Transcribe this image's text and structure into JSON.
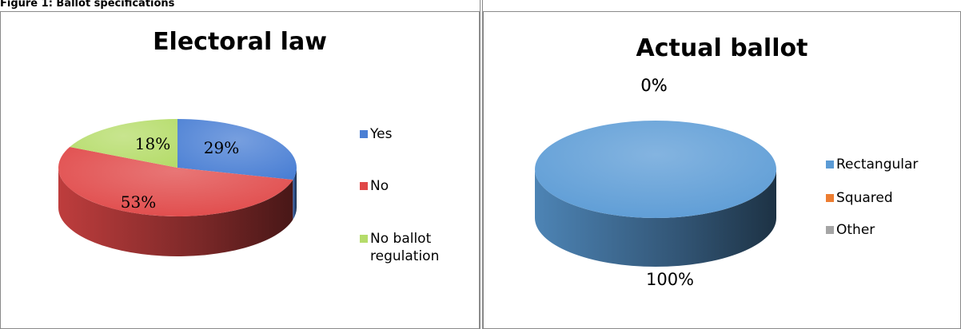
{
  "figure_caption": "Figure 1: Ballot specifications",
  "chart_data": [
    {
      "type": "pie",
      "title": "Electoral law",
      "categories": [
        "Yes",
        "No",
        "No ballot regulation"
      ],
      "values": [
        29,
        53,
        18
      ],
      "data_labels": [
        "29%",
        "53%",
        "18%"
      ],
      "colors": [
        "#4a7fd4",
        "#e04848",
        "#b5dc6a"
      ],
      "legend": [
        "Yes",
        "No",
        "No ballot\nregulation"
      ],
      "legend_position": "right"
    },
    {
      "type": "pie",
      "title": "Actual ballot",
      "categories": [
        "Rectangular",
        "Squared",
        "Other"
      ],
      "values": [
        100,
        0,
        0
      ],
      "data_labels": [
        "100%",
        "0%",
        "0%"
      ],
      "colors": [
        "#5b9bd5",
        "#ed7d31",
        "#a5a5a5"
      ],
      "legend": [
        "Rectangular",
        "Squared",
        "Other"
      ],
      "legend_position": "right"
    }
  ]
}
